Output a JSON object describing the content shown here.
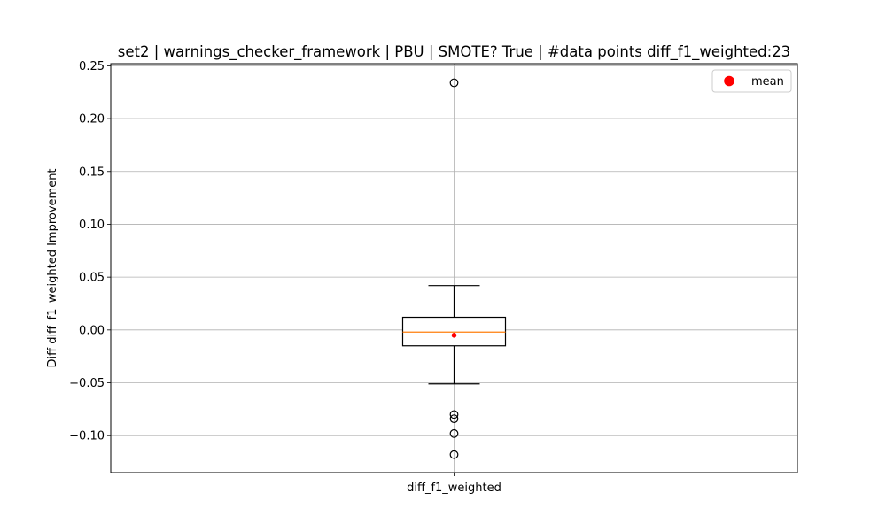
{
  "chart_data": {
    "type": "box",
    "title": "set2 | warnings_checker_framework | PBU | SMOTE? True | #data points diff_f1_weighted:23",
    "xlabel": "",
    "ylabel": "Diff diff_f1_weighted Improvement",
    "categories": [
      "diff_f1_weighted"
    ],
    "ylim": [
      -0.135,
      0.252
    ],
    "yticks": [
      -0.1,
      -0.05,
      0.0,
      0.05,
      0.1,
      0.15,
      0.2,
      0.25
    ],
    "ytick_labels": [
      "−0.10",
      "−0.05",
      "0.00",
      "0.05",
      "0.10",
      "0.15",
      "0.20",
      "0.25"
    ],
    "grid": true,
    "legend": {
      "placement": "top-right",
      "entries": [
        {
          "label": "mean",
          "color": "#ff0000",
          "marker": "circle"
        }
      ]
    },
    "boxes": [
      {
        "category": "diff_f1_weighted",
        "whisker_low": -0.051,
        "q1": -0.015,
        "median": -0.002,
        "q3": 0.012,
        "whisker_high": 0.042,
        "mean": -0.005,
        "outliers": [
          0.234,
          -0.08,
          -0.084,
          -0.098,
          -0.118
        ]
      }
    ],
    "colors": {
      "median": "#ff7f0e",
      "mean": "#ff0000",
      "box": "#000000",
      "grid": "#b0b0b0"
    }
  }
}
